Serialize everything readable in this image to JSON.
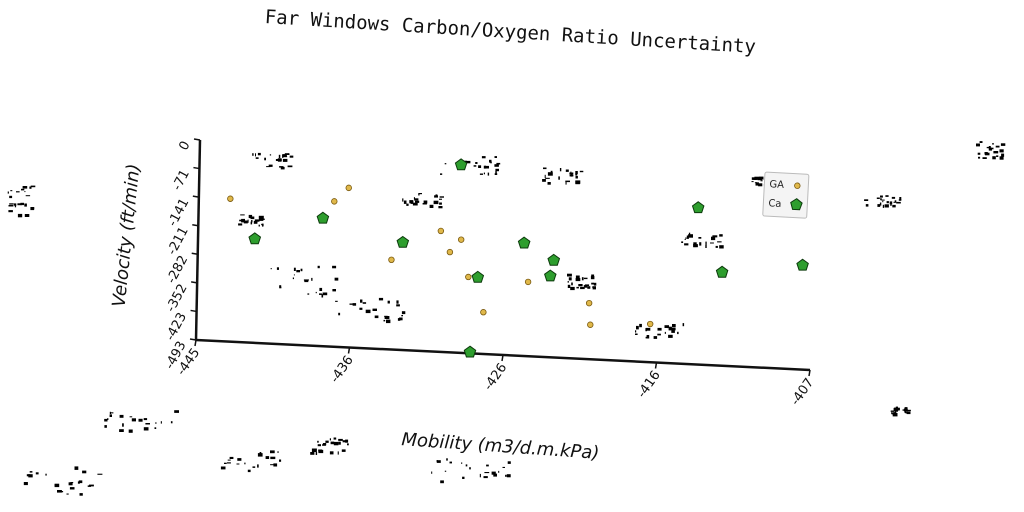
{
  "chart_data": {
    "type": "scatter",
    "title": "Far Windows Carbon/Oxygen Ratio Uncertainty",
    "xlabel": "Mobility (m3/d.m.kPa)",
    "ylabel": "Velocity (ft/min)",
    "xlim": [
      -446,
      -407
    ],
    "ylim": [
      -493,
      0
    ],
    "x_ticks": [
      "-445",
      "-436",
      "-426",
      "-416",
      "-407"
    ],
    "y_ticks": [
      "0",
      "-71",
      "-141",
      "-211",
      "-282",
      "-352",
      "-423",
      "-493"
    ],
    "legend_position": "right",
    "series": [
      {
        "name": "GA",
        "marker": "circle",
        "color": "#e0b84a",
        "stroke": "#7a5a10",
        "points": [
          {
            "x": -444.0,
            "y": -141
          },
          {
            "x": -437.4,
            "y": -135
          },
          {
            "x": -436.5,
            "y": -100
          },
          {
            "x": -433.7,
            "y": -272
          },
          {
            "x": -430.6,
            "y": -195
          },
          {
            "x": -430.0,
            "y": -246
          },
          {
            "x": -429.3,
            "y": -214
          },
          {
            "x": -428.8,
            "y": -305
          },
          {
            "x": -427.8,
            "y": -390
          },
          {
            "x": -425.0,
            "y": -310
          },
          {
            "x": -421.1,
            "y": -355
          },
          {
            "x": -421.0,
            "y": -408
          },
          {
            "x": -417.2,
            "y": -399
          }
        ]
      },
      {
        "name": "Ca",
        "marker": "pentagon",
        "color": "#2e9e2e",
        "stroke": "#0c3a0c",
        "points": [
          {
            "x": -442.4,
            "y": -237
          },
          {
            "x": -438.1,
            "y": -178
          },
          {
            "x": -433.0,
            "y": -228
          },
          {
            "x": -429.4,
            "y": -30
          },
          {
            "x": -428.2,
            "y": -305
          },
          {
            "x": -428.6,
            "y": -490
          },
          {
            "x": -425.3,
            "y": -215
          },
          {
            "x": -423.4,
            "y": -254
          },
          {
            "x": -423.6,
            "y": -293
          },
          {
            "x": -414.3,
            "y": -107
          },
          {
            "x": -412.7,
            "y": -263
          },
          {
            "x": -407.6,
            "y": -236
          }
        ]
      }
    ]
  }
}
